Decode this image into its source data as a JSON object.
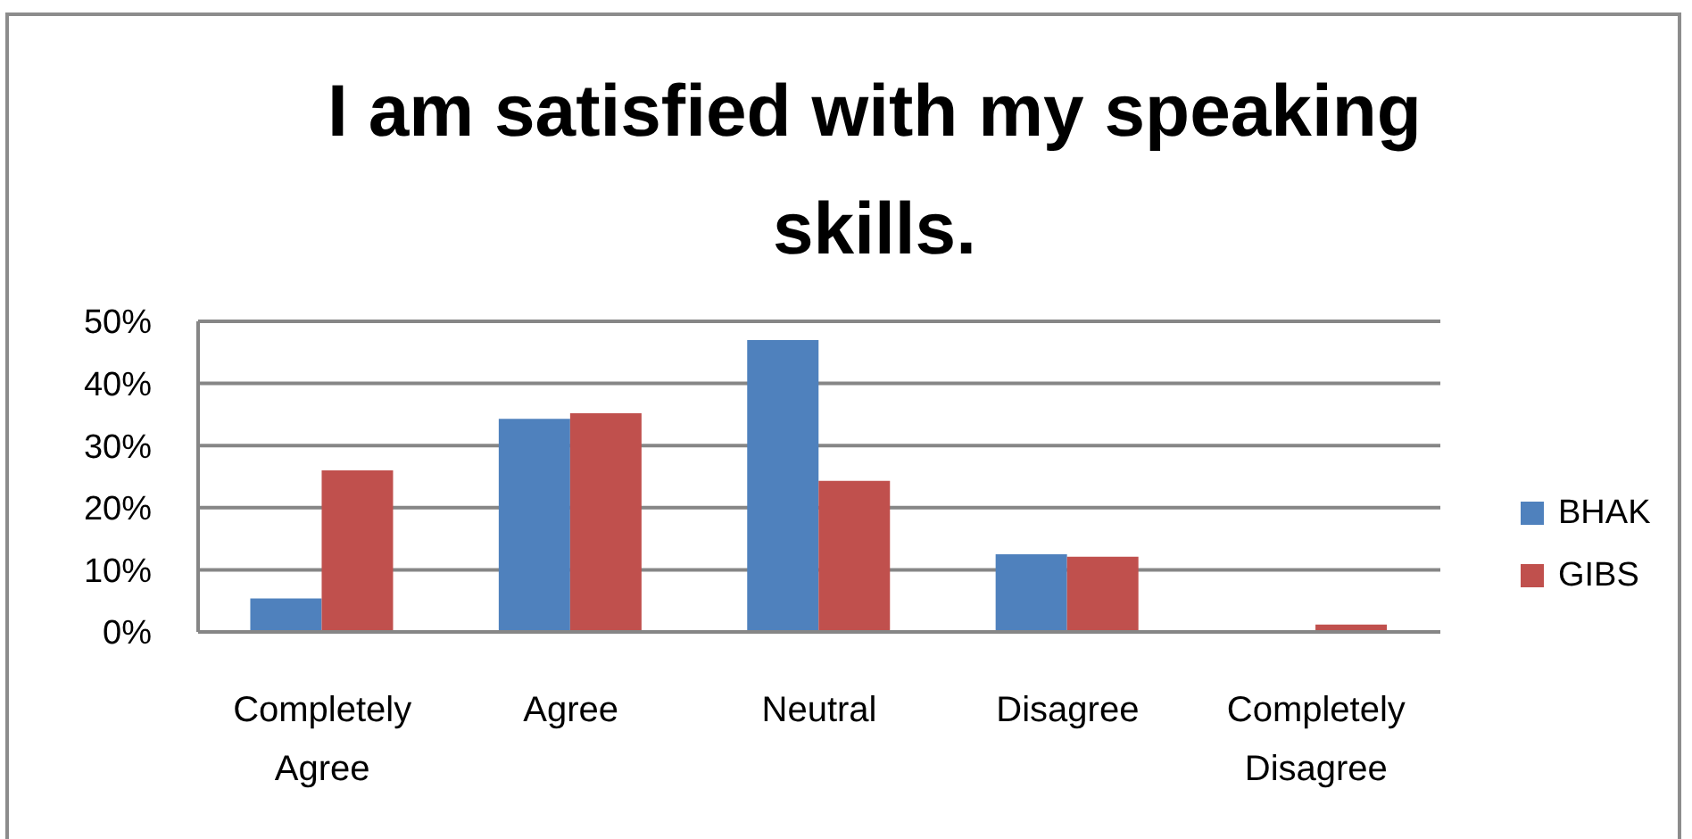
{
  "chart_data": {
    "type": "bar",
    "title": "I am satisfied with my speaking skills.",
    "categories": [
      "Completely Agree",
      "Agree",
      "Neutral",
      "Disagree",
      "Completely Disagree"
    ],
    "series": [
      {
        "name": "BHAK",
        "color": "#4f81bd",
        "values": [
          5.4,
          34.3,
          47.0,
          12.5,
          0
        ]
      },
      {
        "name": "GIBS",
        "color": "#c0504d",
        "values": [
          26.0,
          35.2,
          24.3,
          12.1,
          1.2
        ]
      }
    ],
    "ylim": [
      0,
      50
    ],
    "yticks": [
      {
        "value": 0,
        "label": "0%"
      },
      {
        "value": 10,
        "label": "10%"
      },
      {
        "value": 20,
        "label": "20%"
      },
      {
        "value": 30,
        "label": "30%"
      },
      {
        "value": 40,
        "label": "40%"
      },
      {
        "value": 50,
        "label": "50%"
      }
    ],
    "grid": "y",
    "legend": "right"
  }
}
